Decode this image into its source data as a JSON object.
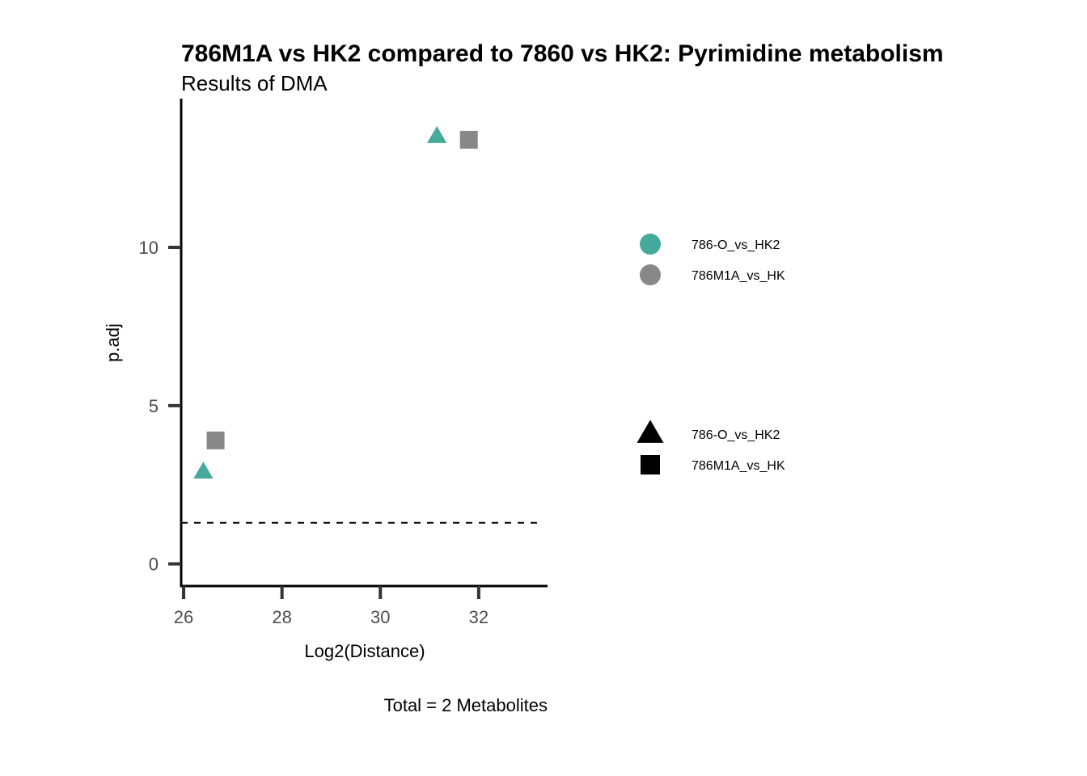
{
  "chart_data": {
    "type": "scatter",
    "title": "786M1A vs HK2 compared to 7860 vs HK2: Pyrimidine metabolism",
    "subtitle": "Results of DMA",
    "xlabel": "Log2(Distance)",
    "ylabel": "p.adj",
    "caption": "Total = 2 Metabolites",
    "xlim": [
      25.95,
      33.4
    ],
    "ylim": [
      -0.7,
      14.7
    ],
    "xticks": [
      26,
      28,
      30,
      32
    ],
    "yticks": [
      0,
      5,
      10
    ],
    "threshold_line": {
      "y": 1.3,
      "style": "dashed"
    },
    "grid": false,
    "series": [
      {
        "name": "786-O_vs_HK2",
        "color": "#45A99B",
        "shape": "triangle",
        "x": [
          26.4,
          31.15
        ],
        "y": [
          2.9,
          13.5
        ]
      },
      {
        "name": "786M1A_vs_HK",
        "color": "#888888",
        "shape": "square",
        "x": [
          26.65,
          31.8
        ],
        "y": [
          3.9,
          13.4
        ]
      }
    ],
    "legend": {
      "placement": "right",
      "color_entries": [
        {
          "label": "786-O_vs_HK2",
          "color": "#45A99B"
        },
        {
          "label": "786M1A_vs_HK",
          "color": "#888888"
        }
      ],
      "shape_entries": [
        {
          "label": "786-O_vs_HK2",
          "shape": "triangle"
        },
        {
          "label": "786M1A_vs_HK",
          "shape": "square"
        }
      ]
    }
  }
}
